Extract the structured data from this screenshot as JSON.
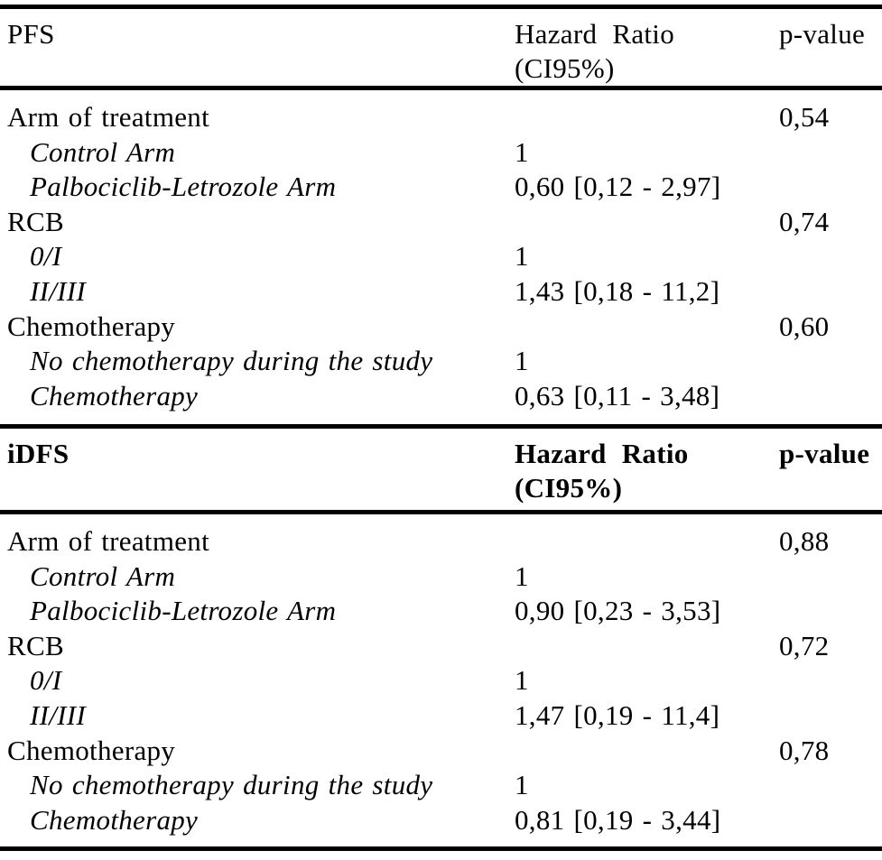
{
  "table": {
    "background": "#ffffff",
    "text_color": "#000000",
    "rule_color": "#000000",
    "sections": [
      {
        "outcome": "PFS",
        "columns": {
          "hazard_ratio_line1": "Hazard Ratio",
          "hazard_ratio_line2": "(CI95%)",
          "p_value": "p-value"
        },
        "rows": [
          {
            "label": "Arm of treatment",
            "hazard_ratio": "",
            "p_value": "0,54"
          },
          {
            "label": "Control Arm",
            "hazard_ratio": "1",
            "p_value": ""
          },
          {
            "label": "Palbociclib-Letrozole Arm",
            "hazard_ratio": "0,60 [0,12 - 2,97]",
            "p_value": ""
          },
          {
            "label": "RCB",
            "hazard_ratio": "",
            "p_value": "0,74"
          },
          {
            "label": "0/I",
            "hazard_ratio": "1",
            "p_value": ""
          },
          {
            "label": "II/III",
            "hazard_ratio": "1,43 [0,18 - 11,2]",
            "p_value": ""
          },
          {
            "label": "Chemotherapy",
            "hazard_ratio": "",
            "p_value": "0,60"
          },
          {
            "label": "No chemotherapy during the study",
            "hazard_ratio": "1",
            "p_value": ""
          },
          {
            "label": "Chemotherapy",
            "hazard_ratio": "0,63 [0,11 - 3,48]",
            "p_value": ""
          }
        ]
      },
      {
        "outcome": "iDFS",
        "columns": {
          "hazard_ratio_line1": "Hazard Ratio",
          "hazard_ratio_line2": "(CI95%)",
          "p_value": "p-value"
        },
        "rows": [
          {
            "label": "Arm of treatment",
            "hazard_ratio": "",
            "p_value": "0,88"
          },
          {
            "label": "Control Arm",
            "hazard_ratio": "1",
            "p_value": ""
          },
          {
            "label": "Palbociclib-Letrozole Arm",
            "hazard_ratio": "0,90 [0,23 - 3,53]",
            "p_value": ""
          },
          {
            "label": "RCB",
            "hazard_ratio": "",
            "p_value": "0,72"
          },
          {
            "label": "0/I",
            "hazard_ratio": "1",
            "p_value": ""
          },
          {
            "label": "II/III",
            "hazard_ratio": "1,47 [0,19 - 11,4]",
            "p_value": ""
          },
          {
            "label": "Chemotherapy",
            "hazard_ratio": "",
            "p_value": "0,78"
          },
          {
            "label": "No chemotherapy during the study",
            "hazard_ratio": "1",
            "p_value": ""
          },
          {
            "label": "Chemotherapy",
            "hazard_ratio": "0,81 [0,19 - 3,44]",
            "p_value": ""
          }
        ]
      }
    ]
  }
}
